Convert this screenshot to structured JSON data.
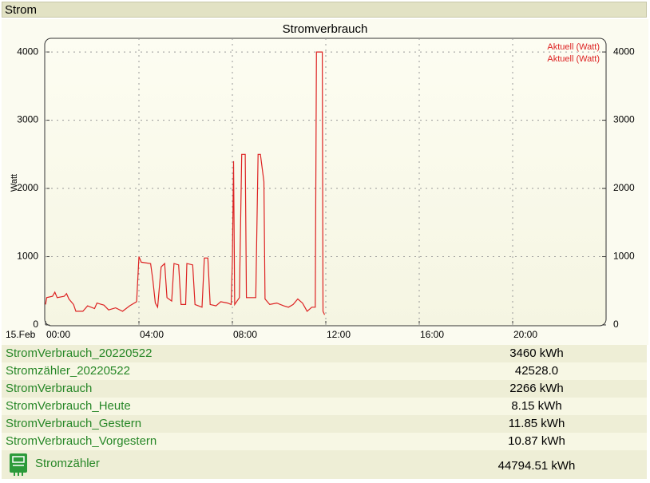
{
  "header": {
    "title": "Strom"
  },
  "chart_data": {
    "type": "line",
    "title": "Stromverbrauch",
    "y_label": "Watt",
    "date_label": "15.Feb",
    "xlim": [
      0,
      24
    ],
    "xticks": [
      {
        "value": 0,
        "label": "00:00"
      },
      {
        "value": 4,
        "label": "04:00"
      },
      {
        "value": 8,
        "label": "08:00"
      },
      {
        "value": 12,
        "label": "12:00"
      },
      {
        "value": 16,
        "label": "16:00"
      },
      {
        "value": 20,
        "label": "20:00"
      }
    ],
    "ylim": [
      0,
      4200
    ],
    "yticks": [
      0,
      1000,
      2000,
      3000,
      4000
    ],
    "y2lim": [
      0,
      4200
    ],
    "y2ticks": [
      0,
      1000,
      2000,
      3000,
      4000
    ],
    "grid": true,
    "legend": "top-right",
    "series": [
      {
        "name": "Aktuell (Watt)",
        "color": "#dd2222",
        "x": [
          0,
          0.05,
          0.3,
          0.4,
          0.5,
          0.8,
          0.9,
          1.0,
          1.2,
          1.3,
          1.6,
          1.8,
          2.1,
          2.2,
          2.5,
          2.7,
          3.0,
          3.3,
          3.6,
          3.9,
          4.0,
          4.1,
          4.5,
          4.6,
          4.7,
          4.8,
          4.95,
          5.1,
          5.2,
          5.4,
          5.5,
          5.7,
          5.8,
          6.0,
          6.05,
          6.3,
          6.4,
          6.7,
          6.8,
          6.95,
          7.05,
          7.3,
          7.5,
          7.8,
          7.95,
          8.0,
          8.05,
          8.1,
          8.3,
          8.4,
          8.55,
          8.6,
          9.0,
          9.1,
          9.2,
          9.35,
          9.4,
          9.6,
          9.9,
          10.2,
          10.4,
          10.6,
          10.8,
          11.0,
          11.2,
          11.4,
          11.55,
          11.6,
          11.85,
          11.88,
          11.95
        ],
        "values": [
          300,
          400,
          420,
          480,
          400,
          420,
          460,
          380,
          300,
          200,
          200,
          280,
          240,
          320,
          290,
          220,
          250,
          200,
          280,
          340,
          1000,
          920,
          900,
          650,
          320,
          260,
          850,
          900,
          400,
          350,
          900,
          880,
          300,
          300,
          900,
          880,
          300,
          260,
          980,
          980,
          300,
          280,
          340,
          320,
          300,
          950,
          2400,
          300,
          400,
          2500,
          2500,
          400,
          400,
          2500,
          2500,
          2100,
          380,
          300,
          320,
          280,
          260,
          300,
          380,
          320,
          200,
          260,
          260,
          4000,
          4000,
          200,
          150
        ]
      },
      {
        "name": "Aktuell (Watt)",
        "color": "#dd2222",
        "axis": "y2",
        "x": [],
        "values": []
      }
    ]
  },
  "rows": [
    {
      "name": "StromVerbrauch_20220522",
      "value": "3460 kWh"
    },
    {
      "name": "Stromzähler_20220522",
      "value": "42528.0"
    },
    {
      "name": "StromVerbrauch",
      "value": "2266 kWh"
    },
    {
      "name": "StromVerbrauch_Heute",
      "value": "8.15 kWh"
    },
    {
      "name": "StromVerbrauch_Gestern",
      "value": "11.85 kWh"
    },
    {
      "name": "StromVerbrauch_Vorgestern",
      "value": "10.87 kWh"
    }
  ],
  "device": {
    "name": "Stromzähler",
    "value": "44794.51 kWh"
  }
}
